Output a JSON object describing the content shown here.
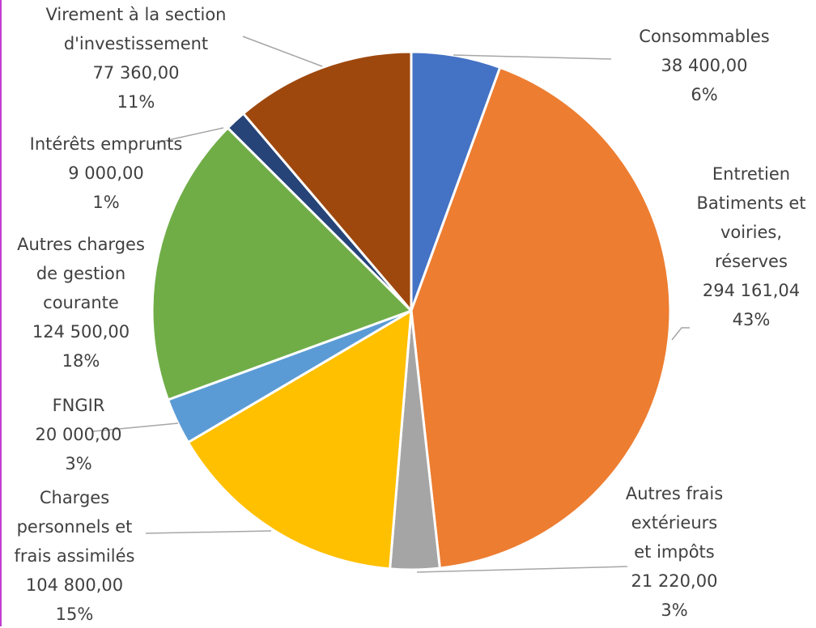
{
  "chart_data": {
    "type": "pie",
    "start_angle_deg": 0,
    "direction": "clockwise",
    "slices": [
      {
        "label_lines": [
          "Consommables"
        ],
        "value_text": "38 400,00",
        "percent_text": "6%",
        "value": 38400.0,
        "color": "#4472C4"
      },
      {
        "label_lines": [
          "Entretien",
          "Batiments et",
          "voiries,",
          "réserves"
        ],
        "value_text": "294 161,04",
        "percent_text": "43%",
        "value": 294161.04,
        "color": "#ED7D31"
      },
      {
        "label_lines": [
          "Autres frais",
          "extérieurs",
          "et impôts"
        ],
        "value_text": "21 220,00",
        "percent_text": "3%",
        "value": 21220.0,
        "color": "#A5A5A5"
      },
      {
        "label_lines": [
          "Charges",
          "personnels et",
          "frais assimilés"
        ],
        "value_text": "104 800,00",
        "percent_text": "15%",
        "value": 104800.0,
        "color": "#FFC000"
      },
      {
        "label_lines": [
          "FNGIR"
        ],
        "value_text": "20 000,00",
        "percent_text": "3%",
        "value": 20000.0,
        "color": "#5B9BD5"
      },
      {
        "label_lines": [
          "Autres charges",
          "de gestion",
          "courante"
        ],
        "value_text": "124 500,00",
        "percent_text": "18%",
        "value": 124500.0,
        "color": "#70AD47"
      },
      {
        "label_lines": [
          "Intérêts emprunts"
        ],
        "value_text": "9 000,00",
        "percent_text": "1%",
        "value": 9000.0,
        "color": "#264478"
      },
      {
        "label_lines": [
          "Virement à la section",
          "d'investissement"
        ],
        "value_text": "77 360,00",
        "percent_text": "11%",
        "value": 77360.0,
        "color": "#9E480E"
      }
    ],
    "legend": "none",
    "border_color": "#ffffff",
    "leader_color": "#a6a6a6"
  }
}
